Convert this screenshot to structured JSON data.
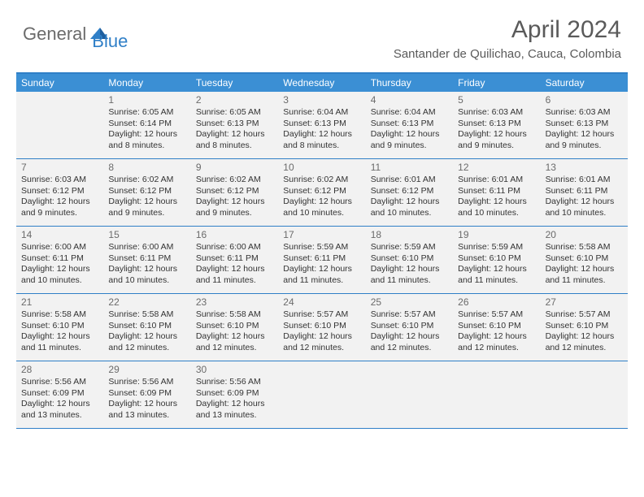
{
  "logo": {
    "part1": "General",
    "part2": "Blue"
  },
  "title": "April 2024",
  "location": "Santander de Quilichao, Cauca, Colombia",
  "weekdays": [
    "Sunday",
    "Monday",
    "Tuesday",
    "Wednesday",
    "Thursday",
    "Friday",
    "Saturday"
  ],
  "colors": {
    "header_bar": "#3b8fd4",
    "rule": "#2f7fc7",
    "cell_bg": "#f2f2f2",
    "text": "#333333",
    "muted": "#6b6b6b"
  },
  "weeks": [
    [
      null,
      {
        "n": "1",
        "sr": "Sunrise: 6:05 AM",
        "ss": "Sunset: 6:14 PM",
        "d1": "Daylight: 12 hours",
        "d2": "and 8 minutes."
      },
      {
        "n": "2",
        "sr": "Sunrise: 6:05 AM",
        "ss": "Sunset: 6:13 PM",
        "d1": "Daylight: 12 hours",
        "d2": "and 8 minutes."
      },
      {
        "n": "3",
        "sr": "Sunrise: 6:04 AM",
        "ss": "Sunset: 6:13 PM",
        "d1": "Daylight: 12 hours",
        "d2": "and 8 minutes."
      },
      {
        "n": "4",
        "sr": "Sunrise: 6:04 AM",
        "ss": "Sunset: 6:13 PM",
        "d1": "Daylight: 12 hours",
        "d2": "and 9 minutes."
      },
      {
        "n": "5",
        "sr": "Sunrise: 6:03 AM",
        "ss": "Sunset: 6:13 PM",
        "d1": "Daylight: 12 hours",
        "d2": "and 9 minutes."
      },
      {
        "n": "6",
        "sr": "Sunrise: 6:03 AM",
        "ss": "Sunset: 6:13 PM",
        "d1": "Daylight: 12 hours",
        "d2": "and 9 minutes."
      }
    ],
    [
      {
        "n": "7",
        "sr": "Sunrise: 6:03 AM",
        "ss": "Sunset: 6:12 PM",
        "d1": "Daylight: 12 hours",
        "d2": "and 9 minutes."
      },
      {
        "n": "8",
        "sr": "Sunrise: 6:02 AM",
        "ss": "Sunset: 6:12 PM",
        "d1": "Daylight: 12 hours",
        "d2": "and 9 minutes."
      },
      {
        "n": "9",
        "sr": "Sunrise: 6:02 AM",
        "ss": "Sunset: 6:12 PM",
        "d1": "Daylight: 12 hours",
        "d2": "and 9 minutes."
      },
      {
        "n": "10",
        "sr": "Sunrise: 6:02 AM",
        "ss": "Sunset: 6:12 PM",
        "d1": "Daylight: 12 hours",
        "d2": "and 10 minutes."
      },
      {
        "n": "11",
        "sr": "Sunrise: 6:01 AM",
        "ss": "Sunset: 6:12 PM",
        "d1": "Daylight: 12 hours",
        "d2": "and 10 minutes."
      },
      {
        "n": "12",
        "sr": "Sunrise: 6:01 AM",
        "ss": "Sunset: 6:11 PM",
        "d1": "Daylight: 12 hours",
        "d2": "and 10 minutes."
      },
      {
        "n": "13",
        "sr": "Sunrise: 6:01 AM",
        "ss": "Sunset: 6:11 PM",
        "d1": "Daylight: 12 hours",
        "d2": "and 10 minutes."
      }
    ],
    [
      {
        "n": "14",
        "sr": "Sunrise: 6:00 AM",
        "ss": "Sunset: 6:11 PM",
        "d1": "Daylight: 12 hours",
        "d2": "and 10 minutes."
      },
      {
        "n": "15",
        "sr": "Sunrise: 6:00 AM",
        "ss": "Sunset: 6:11 PM",
        "d1": "Daylight: 12 hours",
        "d2": "and 10 minutes."
      },
      {
        "n": "16",
        "sr": "Sunrise: 6:00 AM",
        "ss": "Sunset: 6:11 PM",
        "d1": "Daylight: 12 hours",
        "d2": "and 11 minutes."
      },
      {
        "n": "17",
        "sr": "Sunrise: 5:59 AM",
        "ss": "Sunset: 6:11 PM",
        "d1": "Daylight: 12 hours",
        "d2": "and 11 minutes."
      },
      {
        "n": "18",
        "sr": "Sunrise: 5:59 AM",
        "ss": "Sunset: 6:10 PM",
        "d1": "Daylight: 12 hours",
        "d2": "and 11 minutes."
      },
      {
        "n": "19",
        "sr": "Sunrise: 5:59 AM",
        "ss": "Sunset: 6:10 PM",
        "d1": "Daylight: 12 hours",
        "d2": "and 11 minutes."
      },
      {
        "n": "20",
        "sr": "Sunrise: 5:58 AM",
        "ss": "Sunset: 6:10 PM",
        "d1": "Daylight: 12 hours",
        "d2": "and 11 minutes."
      }
    ],
    [
      {
        "n": "21",
        "sr": "Sunrise: 5:58 AM",
        "ss": "Sunset: 6:10 PM",
        "d1": "Daylight: 12 hours",
        "d2": "and 11 minutes."
      },
      {
        "n": "22",
        "sr": "Sunrise: 5:58 AM",
        "ss": "Sunset: 6:10 PM",
        "d1": "Daylight: 12 hours",
        "d2": "and 12 minutes."
      },
      {
        "n": "23",
        "sr": "Sunrise: 5:58 AM",
        "ss": "Sunset: 6:10 PM",
        "d1": "Daylight: 12 hours",
        "d2": "and 12 minutes."
      },
      {
        "n": "24",
        "sr": "Sunrise: 5:57 AM",
        "ss": "Sunset: 6:10 PM",
        "d1": "Daylight: 12 hours",
        "d2": "and 12 minutes."
      },
      {
        "n": "25",
        "sr": "Sunrise: 5:57 AM",
        "ss": "Sunset: 6:10 PM",
        "d1": "Daylight: 12 hours",
        "d2": "and 12 minutes."
      },
      {
        "n": "26",
        "sr": "Sunrise: 5:57 AM",
        "ss": "Sunset: 6:10 PM",
        "d1": "Daylight: 12 hours",
        "d2": "and 12 minutes."
      },
      {
        "n": "27",
        "sr": "Sunrise: 5:57 AM",
        "ss": "Sunset: 6:10 PM",
        "d1": "Daylight: 12 hours",
        "d2": "and 12 minutes."
      }
    ],
    [
      {
        "n": "28",
        "sr": "Sunrise: 5:56 AM",
        "ss": "Sunset: 6:09 PM",
        "d1": "Daylight: 12 hours",
        "d2": "and 13 minutes."
      },
      {
        "n": "29",
        "sr": "Sunrise: 5:56 AM",
        "ss": "Sunset: 6:09 PM",
        "d1": "Daylight: 12 hours",
        "d2": "and 13 minutes."
      },
      {
        "n": "30",
        "sr": "Sunrise: 5:56 AM",
        "ss": "Sunset: 6:09 PM",
        "d1": "Daylight: 12 hours",
        "d2": "and 13 minutes."
      },
      null,
      null,
      null,
      null
    ]
  ]
}
